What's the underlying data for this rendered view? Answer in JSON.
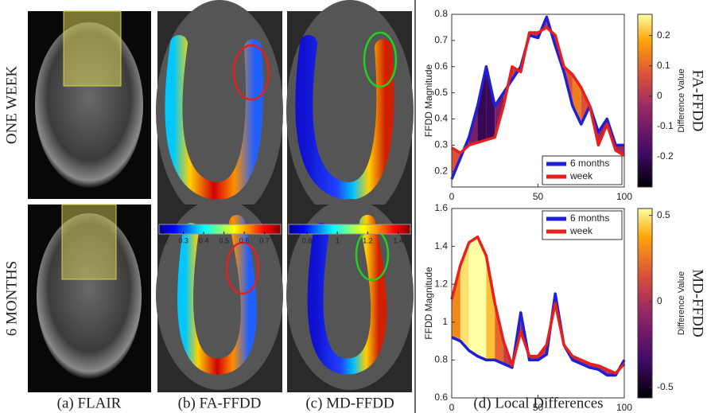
{
  "figure": {
    "row_labels": [
      "ONE WEEK",
      "6 MONTHS"
    ],
    "captions": [
      "(a) FLAIR",
      "(b) FA-FFDD",
      "(c) MD-FFDD",
      "(d) Local Differences"
    ],
    "colorbars": [
      {
        "lim": [
          0.18,
          0.78
        ],
        "ticks": [
          0.2,
          0.3,
          0.4,
          0.5,
          0.6,
          0.7
        ]
      },
      {
        "lim": [
          0.68,
          1.48
        ],
        "ticks": [
          0.8,
          1,
          1.2,
          1.4
        ]
      }
    ]
  },
  "chart_data": [
    {
      "type": "line",
      "side_label": "FA-FFDD",
      "y_label": "FFDD Magnitude",
      "x": [
        0,
        5,
        10,
        15,
        20,
        25,
        30,
        35,
        40,
        45,
        50,
        55,
        60,
        65,
        70,
        75,
        80,
        85,
        90,
        95,
        100
      ],
      "series": [
        {
          "name": "6 months",
          "color": "#1f1fd6",
          "values": [
            0.17,
            0.25,
            0.33,
            0.45,
            0.6,
            0.45,
            0.5,
            0.55,
            0.6,
            0.72,
            0.71,
            0.79,
            0.68,
            0.58,
            0.45,
            0.38,
            0.45,
            0.35,
            0.4,
            0.3,
            0.3
          ]
        },
        {
          "name": "week",
          "color": "#e8201c",
          "values": [
            0.29,
            0.27,
            0.3,
            0.31,
            0.32,
            0.33,
            0.45,
            0.6,
            0.58,
            0.73,
            0.73,
            0.75,
            0.72,
            0.6,
            0.57,
            0.52,
            0.45,
            0.3,
            0.38,
            0.28,
            0.26
          ]
        }
      ],
      "xlim": [
        0,
        100
      ],
      "xticks": [
        0,
        50,
        100
      ],
      "ylim": [
        0.14,
        0.8
      ],
      "yticks": [
        0.2,
        0.3,
        0.4,
        0.5,
        0.6,
        0.7,
        0.8
      ],
      "legend": "lower right",
      "colorbar": {
        "label": "Difference Value",
        "lim": [
          -0.3,
          0.27
        ],
        "ticks": [
          -0.2,
          -0.1,
          0,
          0.1,
          0.2
        ]
      }
    },
    {
      "type": "line",
      "side_label": "MD-FFDD",
      "y_label": "FFDD Magnitude",
      "x": [
        0,
        5,
        10,
        15,
        20,
        25,
        30,
        35,
        40,
        45,
        50,
        55,
        60,
        65,
        70,
        75,
        80,
        85,
        90,
        95,
        100
      ],
      "series": [
        {
          "name": "6 months",
          "color": "#1f1fd6",
          "values": [
            0.92,
            0.9,
            0.85,
            0.82,
            0.8,
            0.8,
            0.78,
            0.76,
            1.05,
            0.8,
            0.8,
            0.83,
            1.15,
            0.88,
            0.8,
            0.78,
            0.76,
            0.75,
            0.72,
            0.72,
            0.8
          ]
        },
        {
          "name": "week",
          "color": "#e8201c",
          "values": [
            1.12,
            1.3,
            1.42,
            1.45,
            1.35,
            1.1,
            0.9,
            0.77,
            0.95,
            0.82,
            0.82,
            0.88,
            1.1,
            0.88,
            0.82,
            0.8,
            0.78,
            0.77,
            0.75,
            0.73,
            0.78
          ]
        }
      ],
      "xlim": [
        0,
        100
      ],
      "xticks": [
        0,
        50,
        100
      ],
      "ylim": [
        0.6,
        1.6
      ],
      "yticks": [
        0.6,
        0.8,
        1,
        1.2,
        1.4,
        1.6
      ],
      "legend": "upper right",
      "colorbar": {
        "label": "Difference Value",
        "lim": [
          -0.56,
          0.54
        ],
        "ticks": [
          -0.5,
          0,
          0.5
        ]
      }
    }
  ]
}
